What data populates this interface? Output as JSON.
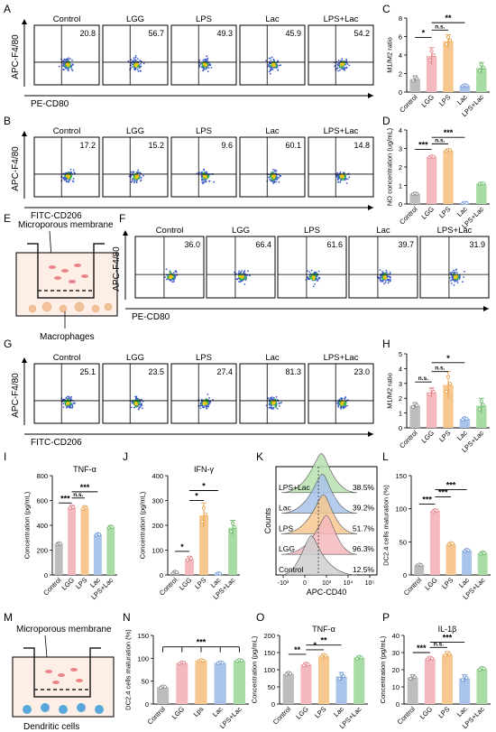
{
  "panel_letters": [
    "A",
    "B",
    "C",
    "D",
    "E",
    "F",
    "G",
    "H",
    "I",
    "J",
    "K",
    "L",
    "M",
    "N",
    "O",
    "P"
  ],
  "groups": [
    "Control",
    "LGG",
    "LPS",
    "Lac",
    "LPS+Lac"
  ],
  "colors": {
    "control": "#bdbdbd",
    "lgg": "#f4b9bd",
    "lps": "#f6c78f",
    "lac": "#a9c3ea",
    "lps_lac": "#a9dba4",
    "sig_line": "#000000"
  },
  "flow_rows": [
    {
      "panel": "A",
      "y_axis_label": "APC-F4/80",
      "x_axis_label": "PE-CD80",
      "groups": [
        "Control",
        "LGG",
        "LPS",
        "Lac",
        "LPS+Lac"
      ],
      "values": [
        "20.8",
        "56.7",
        "49.3",
        "45.9",
        "54.2"
      ]
    },
    {
      "panel": "B",
      "y_axis_label": "APC-F4/80",
      "x_axis_label": "FITC-CD206",
      "groups": [
        "Control",
        "LGG",
        "LPS",
        "Lac",
        "LPS+Lac"
      ],
      "values": [
        "17.2",
        "15.2",
        "9.6",
        "60.1",
        "14.8"
      ]
    },
    {
      "panel": "F",
      "y_axis_label": "APC-F4/80",
      "x_axis_label": "PE-CD80",
      "groups": [
        "Control",
        "LGG",
        "LPS",
        "Lac",
        "LPS+Lac"
      ],
      "values": [
        "36.0",
        "66.4",
        "61.6",
        "39.7",
        "31.9"
      ]
    },
    {
      "panel": "G",
      "y_axis_label": "APC-F4/80",
      "x_axis_label": "FITC-CD206",
      "groups": [
        "Control",
        "LGG",
        "LPS",
        "Lac",
        "LPS+Lac"
      ],
      "values": [
        "25.1",
        "23.5",
        "27.4",
        "81.3",
        "23.0"
      ]
    }
  ],
  "schematics": [
    {
      "panel": "E",
      "top_label": "Microporous membrane",
      "bottom_label": "Macrophages"
    },
    {
      "panel": "M",
      "top_label": "Microporous membrane",
      "bottom_label": "Dendritic cells"
    }
  ],
  "histogram_K": {
    "panel": "K",
    "y_axis_label": "Counts",
    "x_axis_label": "APC-CD40",
    "x_ticks": [
      "-10³",
      "0",
      "10³",
      "10⁴",
      "10⁵"
    ],
    "rows": [
      {
        "name": "LPS+Lac",
        "value": "38.5%"
      },
      {
        "name": "Lac",
        "value": "39.2%"
      },
      {
        "name": "LPS",
        "value": "51.7%"
      },
      {
        "name": "LGG",
        "value": "96.3%"
      },
      {
        "name": "Control",
        "value": "12.5%"
      }
    ]
  },
  "chart_data": [
    {
      "panel": "C",
      "type": "bar",
      "categories": [
        "Control",
        "LGG",
        "LPS",
        "Lac",
        "LPS+Lac"
      ],
      "values": [
        1.4,
        3.9,
        5.5,
        0.7,
        2.6
      ],
      "errors": [
        0.35,
        0.9,
        0.7,
        0.1,
        0.6
      ],
      "ylabel": "M1/M2 ratio",
      "ylim": [
        0,
        8
      ],
      "yticks": [
        0,
        2,
        4,
        6,
        8
      ],
      "title": "",
      "sig": [
        {
          "a": 0,
          "b": 1,
          "label": "*",
          "level": 5.9
        },
        {
          "a": 1,
          "b": 2,
          "label": "n.s.",
          "level": 6.7
        },
        {
          "a": 1,
          "b": 3,
          "label": "**",
          "level": 7.5
        }
      ]
    },
    {
      "panel": "D",
      "type": "bar",
      "categories": [
        "Control",
        "LGG",
        "LPS",
        "Lac",
        "LPS+Lac"
      ],
      "values": [
        0.55,
        2.55,
        2.9,
        0.05,
        1.1
      ],
      "errors": [
        0.04,
        0.05,
        0.07,
        0.03,
        0.04
      ],
      "ylabel": "NO concentration (ug/mL)",
      "ylim": [
        0,
        4
      ],
      "yticks": [
        0,
        1,
        2,
        3,
        4
      ],
      "title": "",
      "sig": [
        {
          "a": 0,
          "b": 1,
          "label": "***",
          "level": 2.95
        },
        {
          "a": 1,
          "b": 2,
          "label": "n.s.",
          "level": 3.25
        },
        {
          "a": 1,
          "b": 3,
          "label": "***",
          "level": 3.6
        }
      ]
    },
    {
      "panel": "H",
      "type": "bar",
      "categories": [
        "Control",
        "LGG",
        "LPS",
        "Lac",
        "LPS+Lac"
      ],
      "values": [
        1.5,
        2.4,
        2.9,
        0.6,
        1.5
      ],
      "errors": [
        0.2,
        0.3,
        0.9,
        0.1,
        0.5
      ],
      "ylabel": "M1/M2 ratio",
      "ylim": [
        0,
        5
      ],
      "yticks": [
        0,
        1,
        2,
        3,
        4,
        5
      ],
      "title": "",
      "sig": [
        {
          "a": 0,
          "b": 1,
          "label": "n.s.",
          "level": 3.1
        },
        {
          "a": 1,
          "b": 2,
          "label": "n.s.",
          "level": 3.8
        },
        {
          "a": 1,
          "b": 3,
          "label": "*",
          "level": 4.4
        }
      ]
    },
    {
      "panel": "I",
      "type": "bar",
      "categories": [
        "Control",
        "LGG",
        "LPS",
        "Lac",
        "LPS+Lac"
      ],
      "values": [
        250,
        545,
        540,
        325,
        385
      ],
      "errors": [
        10,
        15,
        15,
        10,
        10
      ],
      "ylabel": "Concentration (pg/mL)",
      "ylim": [
        0,
        800
      ],
      "yticks": [
        0,
        200,
        400,
        600,
        800
      ],
      "title": "TNF-α",
      "sig": [
        {
          "a": 0,
          "b": 1,
          "label": "***",
          "level": 580
        },
        {
          "a": 1,
          "b": 2,
          "label": "n.s.",
          "level": 620
        },
        {
          "a": 1,
          "b": 3,
          "label": "***",
          "level": 670
        }
      ]
    },
    {
      "panel": "J",
      "type": "bar",
      "categories": [
        "Control",
        "LGG",
        "LPS",
        "Lac",
        "LPS+Lac"
      ],
      "values": [
        10,
        65,
        240,
        5,
        190
      ],
      "errors": [
        5,
        10,
        50,
        3,
        30
      ],
      "ylabel": "Concentration (pg/mL)",
      "ylim": [
        0,
        400
      ],
      "yticks": [
        0,
        100,
        200,
        300,
        400
      ],
      "title": "IFN-γ",
      "sig": [
        {
          "a": 0,
          "b": 1,
          "label": "*",
          "level": 95
        },
        {
          "a": 1,
          "b": 2,
          "label": "*",
          "level": 300
        },
        {
          "a": 1,
          "b": 3,
          "label": "*",
          "level": 340
        }
      ]
    },
    {
      "panel": "L",
      "type": "bar",
      "categories": [
        "Control",
        "LGG",
        "LPS",
        "Lac",
        "LPS+Lac"
      ],
      "values": [
        15,
        97,
        47,
        37,
        33
      ],
      "errors": [
        1.5,
        2,
        2,
        2,
        2
      ],
      "ylabel": "DC2.4 cells maturation (%)",
      "ylim": [
        0,
        150
      ],
      "yticks": [
        0,
        50,
        100,
        150
      ],
      "title": "",
      "sig": [
        {
          "a": 0,
          "b": 1,
          "label": "***",
          "level": 107
        },
        {
          "a": 1,
          "b": 2,
          "label": "***",
          "level": 118
        },
        {
          "a": 1,
          "b": 3,
          "label": "***",
          "level": 129
        }
      ]
    },
    {
      "panel": "N",
      "type": "bar",
      "categories": [
        "Control",
        "LGG",
        "Lps",
        "Lac",
        "LPS+Lac"
      ],
      "values": [
        37,
        90,
        95,
        90,
        95
      ],
      "errors": [
        3,
        2,
        2,
        2,
        2
      ],
      "ylabel": "DC2.4 cells maturation (%)",
      "ylim": [
        0,
        150
      ],
      "yticks": [
        0,
        50,
        100,
        150
      ],
      "title": "",
      "sig": [
        {
          "a": 0,
          "b": 4,
          "label": "***",
          "level": 125,
          "bracket": true
        }
      ]
    },
    {
      "panel": "O",
      "type": "bar",
      "categories": [
        "Control",
        "LGG",
        "LPS",
        "Lac",
        "LPS+Lac"
      ],
      "values": [
        88,
        115,
        140,
        80,
        135
      ],
      "errors": [
        5,
        5,
        5,
        12,
        5
      ],
      "ylabel": "Concentration (pg/mL)",
      "ylim": [
        0,
        200
      ],
      "yticks": [
        0,
        50,
        100,
        150,
        200
      ],
      "title": "TNF-α",
      "sig": [
        {
          "a": 0,
          "b": 1,
          "label": "**",
          "level": 145
        },
        {
          "a": 1,
          "b": 2,
          "label": "*",
          "level": 158
        },
        {
          "a": 1,
          "b": 3,
          "label": "**",
          "level": 172
        }
      ]
    },
    {
      "panel": "P",
      "type": "bar",
      "categories": [
        "Control",
        "LGG",
        "LPS",
        "Lac",
        "LPS+Lac"
      ],
      "values": [
        15.5,
        26.5,
        29,
        15,
        20.5
      ],
      "errors": [
        1.5,
        1,
        1.5,
        2,
        1
      ],
      "ylabel": "Concentration (pg/mL)",
      "ylim": [
        0,
        40
      ],
      "yticks": [
        0,
        10,
        20,
        30,
        40
      ],
      "title": "IL-1β",
      "sig": [
        {
          "a": 0,
          "b": 1,
          "label": "***",
          "level": 30
        },
        {
          "a": 1,
          "b": 2,
          "label": "n.s.",
          "level": 33
        },
        {
          "a": 1,
          "b": 3,
          "label": "***",
          "level": 36
        }
      ]
    }
  ]
}
